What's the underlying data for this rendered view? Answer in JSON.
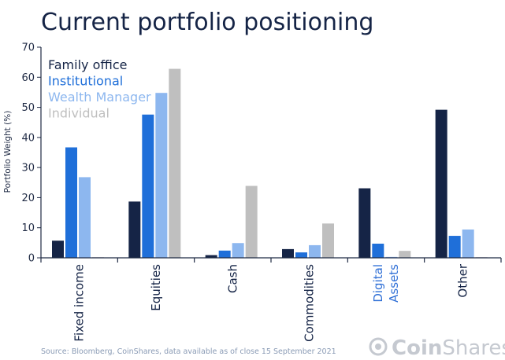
{
  "chart_data": {
    "type": "bar",
    "title": "Current portfolio positioning",
    "ylabel": "Portfolio Weight (%)",
    "xlabel": "",
    "ylim": [
      0,
      70
    ],
    "yticks": [
      0,
      10,
      20,
      30,
      40,
      50,
      60,
      70
    ],
    "grid": false,
    "legend_position": "top-left",
    "categories": [
      {
        "label": "Fixed income",
        "color": "#152446"
      },
      {
        "label": "Equities",
        "color": "#152446"
      },
      {
        "label": "Cash",
        "color": "#152446"
      },
      {
        "label": "Commodities",
        "color": "#152446"
      },
      {
        "label": "Digital Assets",
        "color": "#2f6fd6"
      },
      {
        "label": "Other",
        "color": "#152446"
      }
    ],
    "series": [
      {
        "name": "Family office",
        "color": "#152446",
        "values": [
          5.7,
          18.7,
          0.9,
          2.9,
          23.1,
          49.2
        ]
      },
      {
        "name": "Institutional",
        "color": "#1f6fd9",
        "values": [
          36.7,
          47.6,
          2.4,
          1.8,
          4.7,
          7.3
        ]
      },
      {
        "name": "Wealth Manager",
        "color": "#8db7ef",
        "values": [
          26.8,
          54.8,
          4.9,
          4.2,
          0.3,
          9.4
        ]
      },
      {
        "name": "Individual",
        "color": "#bfbfbf",
        "values": [
          0.2,
          62.8,
          23.9,
          11.4,
          2.3,
          0.2
        ]
      }
    ]
  },
  "footer": {
    "source": "Source: Bloomberg, CoinShares, data available as of close 15 September 2021",
    "brand_prefix": "Coin",
    "brand_suffix": "Shares"
  }
}
